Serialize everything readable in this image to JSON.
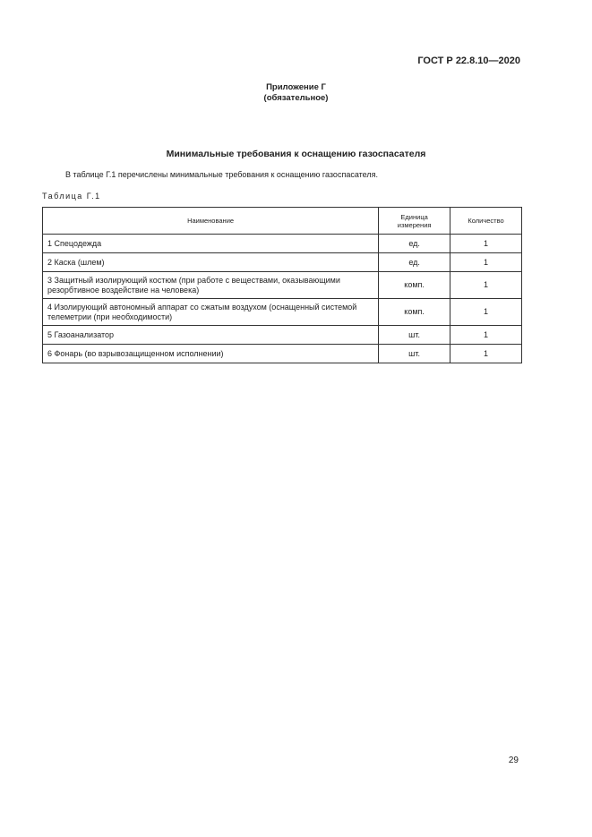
{
  "header": {
    "doc_number": "ГОСТ Р 22.8.10—2020"
  },
  "appendix": {
    "title": "Приложение Г",
    "status": "(обязательное)"
  },
  "section_title": "Минимальные требования к оснащению газоспасателя",
  "intro": "В таблице Г.1 перечислены минимальные требования к оснащению газоспасателя.",
  "table": {
    "caption": "Таблица Г.1",
    "columns": [
      "Наименование",
      "Единица измерения",
      "Количество"
    ],
    "rows": [
      {
        "name": "1 Спецодежда",
        "unit": "ед.",
        "qty": "1"
      },
      {
        "name": "2 Каска (шлем)",
        "unit": "ед.",
        "qty": "1"
      },
      {
        "name": "3 Защитный изолирующий костюм (при работе с веществами, оказывающими резорбтивное воздействие на человека)",
        "unit": "комп.",
        "qty": "1"
      },
      {
        "name": "4 Изолирующий автономный аппарат со сжатым воздухом (оснащенный системой телеметрии (при необходимости)",
        "unit": "комп.",
        "qty": "1"
      },
      {
        "name": "5 Газоанализатор",
        "unit": "шт.",
        "qty": "1"
      },
      {
        "name": "6 Фонарь (во взрывозащищенном исполнении)",
        "unit": "шт.",
        "qty": "1"
      }
    ]
  },
  "page_number": "29"
}
